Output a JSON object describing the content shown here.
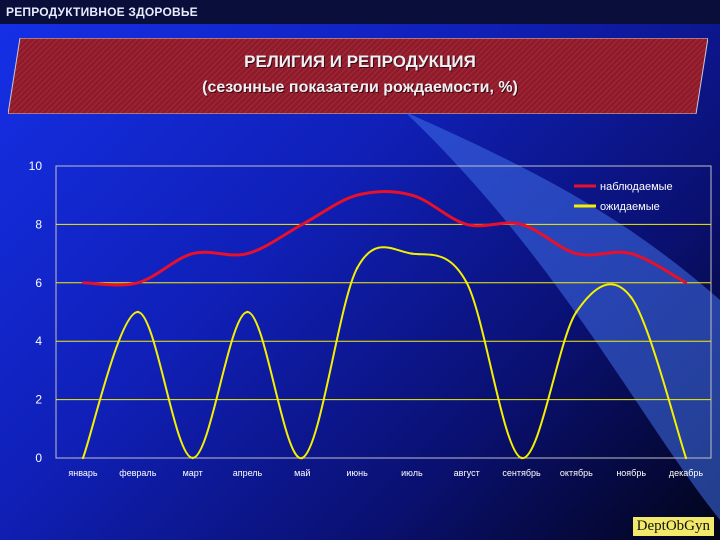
{
  "header": {
    "section_label": "РЕПРОДУКТИВНОЕ ЗДОРОВЬЕ"
  },
  "banner": {
    "title": "РЕЛИГИЯ И РЕПРОДУКЦИЯ",
    "subtitle": "(сезонные показатели рождаемости, %)"
  },
  "footer": {
    "brand": "DeptObGyn"
  },
  "colors": {
    "observed": "#e8102a",
    "expected": "#f5f000",
    "banner_fill": "#8e1a2a",
    "grid": "#f5f000"
  },
  "chart_data": {
    "type": "line",
    "title": "",
    "xlabel": "",
    "ylabel": "",
    "ylim": [
      0,
      10
    ],
    "yticks": [
      "0",
      "2",
      "4",
      "6",
      "8",
      "10"
    ],
    "grid": true,
    "legend_position": "top-right",
    "categories": [
      "январь",
      "февраль",
      "март",
      "апрель",
      "май",
      "июнь",
      "июль",
      "август",
      "сентябрь",
      "октябрь",
      "ноябрь",
      "декабрь"
    ],
    "series": [
      {
        "name": "наблюдаемые",
        "values": [
          6,
          6,
          7,
          7,
          8,
          9,
          9,
          8,
          8,
          7,
          7,
          6
        ]
      },
      {
        "name": "ожидаемые",
        "values": [
          0,
          5,
          0,
          5,
          0,
          6.5,
          7,
          6,
          0,
          5,
          5.5,
          0
        ]
      }
    ]
  }
}
